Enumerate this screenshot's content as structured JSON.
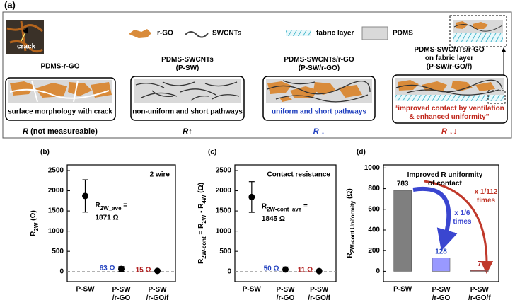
{
  "schematic": {
    "panel_label": "(a)",
    "inset_label": "crack",
    "legend": [
      "r-GO",
      "SWCNTs",
      "fabric layer",
      "PDMS"
    ],
    "columns": [
      {
        "title": "PDMS-r-GO",
        "caption": "surface morphology with crack",
        "result": {
          "symbol": "R",
          "note": "(not measureable)"
        }
      },
      {
        "title": "PDMS-SWCNTs\n(P-SW)",
        "caption": "non-uniform and short pathways",
        "result": {
          "symbol": "R",
          "note": "↑"
        }
      },
      {
        "title": "PDMS-SWCNTs/r-GO\n(P-SW/r-GO)",
        "caption": "uniform and short pathways",
        "result": {
          "symbol": "R",
          "note": "↓"
        }
      },
      {
        "title": "PDMS-SWCNTs/r-GO\non fabric layer\n(P-SW/r-GO/f)",
        "caption": "“improved contact by ventilation\n& enhanced uniformity”",
        "result": {
          "symbol": "R",
          "note": "↓↓"
        }
      }
    ]
  },
  "chart_data": [
    {
      "type": "scatter",
      "panel_label": "(b)",
      "categories": [
        "P-SW",
        "P-SW\n/r-GO",
        "P-SW\n/r-GO/f"
      ],
      "values": [
        1871,
        63,
        15
      ],
      "errors": [
        400,
        60,
        15
      ],
      "value_labels": [
        "1871 Ω",
        "63 Ω",
        "15 Ω"
      ],
      "label_colors": [
        "#000000",
        "#1f3fbf",
        "#b22222"
      ],
      "color": "#000000",
      "ylim": [
        -250,
        2640
      ],
      "yticks": [
        0,
        500,
        1000,
        1500,
        2000,
        2500
      ],
      "zero_line": true,
      "ylabel": [
        {
          "text": "R"
        },
        {
          "text": "2W",
          "sub": true
        },
        {
          "text": " (Ω)"
        }
      ],
      "annotation": [
        {
          "text": "R"
        },
        {
          "text": "2W_ave",
          "sub": true
        },
        {
          "text": " ="
        }
      ],
      "note": "2 wire"
    },
    {
      "type": "scatter",
      "panel_label": "(c)",
      "categories": [
        "P-SW",
        "P-SW\n/r-GO",
        "P-SW\n/r-GO/f"
      ],
      "values": [
        1845,
        50,
        11
      ],
      "errors": [
        380,
        60,
        12
      ],
      "value_labels": [
        "1845 Ω",
        "50 Ω",
        "11 Ω"
      ],
      "label_colors": [
        "#000000",
        "#1f3fbf",
        "#b22222"
      ],
      "color": "#000000",
      "ylim": [
        -250,
        2640
      ],
      "yticks": [
        0,
        500,
        1000,
        1500,
        2000,
        2500
      ],
      "zero_line": true,
      "ylabel": [
        {
          "text": "R"
        },
        {
          "text": "2W-cont",
          "sub": true
        },
        {
          "text": " = R"
        },
        {
          "text": "2W",
          "sub": true
        },
        {
          "text": " - R"
        },
        {
          "text": "4W",
          "sub": true
        },
        {
          "text": " (Ω)"
        }
      ],
      "annotation": [
        {
          "text": "R"
        },
        {
          "text": "2W-cont_ave",
          "sub": true
        },
        {
          "text": " ="
        }
      ],
      "note": "Contact resistance"
    },
    {
      "type": "bar",
      "panel_label": "(d)",
      "categories": [
        "P-SW",
        "P-SW\n/r-GO",
        "P-SW\n/r-GO/f"
      ],
      "values": [
        783,
        128,
        7
      ],
      "colors": [
        "#7f7f7f",
        "#9999ff",
        "#ff4040"
      ],
      "label_colors": [
        "#000000",
        "#1f3fbf",
        "#b22222"
      ],
      "ylim": [
        -100,
        1030
      ],
      "yticks": [
        0,
        200,
        400,
        600,
        800,
        1000
      ],
      "ylabel": [
        {
          "text": "R"
        },
        {
          "text": "2W-cont Uniformity",
          "sub": true
        },
        {
          "text": " (Ω)"
        }
      ],
      "note": "Improved R uniformity\nof contact",
      "ratios": [
        {
          "text": "x 1/6\ntimes",
          "color": "#3a46d0"
        },
        {
          "text": "x 1/112\ntimes",
          "color": "#c0392b"
        }
      ]
    }
  ]
}
